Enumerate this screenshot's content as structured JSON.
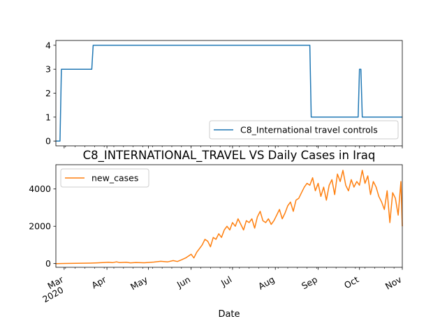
{
  "chart_data": [
    {
      "type": "line",
      "title": "",
      "xlabel": "",
      "ylabel": "",
      "ylim": [
        -0.2,
        4.2
      ],
      "yticks": [
        0,
        1,
        2,
        3,
        4
      ],
      "x_range": [
        "2020-02-24",
        "2020-11-01"
      ],
      "legend": "lower-right",
      "grid": false,
      "series": [
        {
          "name": "C8_International travel controls",
          "color": "#1f77b4",
          "points": [
            [
              "2020-02-24",
              0
            ],
            [
              "2020-02-27",
              0
            ],
            [
              "2020-02-28",
              3
            ],
            [
              "2020-03-21",
              3
            ],
            [
              "2020-03-22",
              4
            ],
            [
              "2020-08-26",
              4
            ],
            [
              "2020-08-27",
              1
            ],
            [
              "2020-09-30",
              1
            ],
            [
              "2020-10-01",
              3
            ],
            [
              "2020-10-02",
              3
            ],
            [
              "2020-10-03",
              1
            ],
            [
              "2020-11-01",
              1
            ]
          ]
        }
      ]
    },
    {
      "type": "line",
      "title": "C8_INTERNATIONAL_TRAVEL VS Daily Cases in Iraq",
      "xlabel": "Date",
      "ylabel": "",
      "ylim": [
        -200,
        5300
      ],
      "yticks": [
        0,
        2000,
        4000
      ],
      "x_range": [
        "2020-02-24",
        "2020-11-01"
      ],
      "xtick_labels": [
        {
          "date": "2020-03-01",
          "label": "Mar",
          "sub": "2020"
        },
        {
          "date": "2020-04-01",
          "label": "Apr",
          "sub": ""
        },
        {
          "date": "2020-05-01",
          "label": "May",
          "sub": ""
        },
        {
          "date": "2020-06-01",
          "label": "Jun",
          "sub": ""
        },
        {
          "date": "2020-07-01",
          "label": "Jul",
          "sub": ""
        },
        {
          "date": "2020-08-01",
          "label": "Aug",
          "sub": ""
        },
        {
          "date": "2020-09-01",
          "label": "Sep",
          "sub": ""
        },
        {
          "date": "2020-10-01",
          "label": "Oct",
          "sub": ""
        },
        {
          "date": "2020-11-01",
          "label": "Nov",
          "sub": ""
        }
      ],
      "legend": "upper-left",
      "grid": false,
      "series": [
        {
          "name": "new_cases",
          "color": "#ff7f0e",
          "points": [
            [
              "2020-02-24",
              0
            ],
            [
              "2020-03-01",
              5
            ],
            [
              "2020-03-10",
              12
            ],
            [
              "2020-03-20",
              25
            ],
            [
              "2020-03-25",
              40
            ],
            [
              "2020-03-30",
              60
            ],
            [
              "2020-04-02",
              70
            ],
            [
              "2020-04-05",
              50
            ],
            [
              "2020-04-08",
              90
            ],
            [
              "2020-04-10",
              55
            ],
            [
              "2020-04-15",
              70
            ],
            [
              "2020-04-18",
              40
            ],
            [
              "2020-04-22",
              60
            ],
            [
              "2020-04-28",
              45
            ],
            [
              "2020-05-05",
              80
            ],
            [
              "2020-05-10",
              120
            ],
            [
              "2020-05-15",
              90
            ],
            [
              "2020-05-19",
              160
            ],
            [
              "2020-05-22",
              110
            ],
            [
              "2020-05-25",
              200
            ],
            [
              "2020-05-28",
              300
            ],
            [
              "2020-05-30",
              400
            ],
            [
              "2020-06-01",
              500
            ],
            [
              "2020-06-03",
              300
            ],
            [
              "2020-06-05",
              600
            ],
            [
              "2020-06-07",
              800
            ],
            [
              "2020-06-09",
              1000
            ],
            [
              "2020-06-11",
              1300
            ],
            [
              "2020-06-13",
              1200
            ],
            [
              "2020-06-15",
              900
            ],
            [
              "2020-06-17",
              1400
            ],
            [
              "2020-06-19",
              1300
            ],
            [
              "2020-06-21",
              1600
            ],
            [
              "2020-06-23",
              1400
            ],
            [
              "2020-06-25",
              1800
            ],
            [
              "2020-06-27",
              2000
            ],
            [
              "2020-06-29",
              1800
            ],
            [
              "2020-07-01",
              2200
            ],
            [
              "2020-07-03",
              2000
            ],
            [
              "2020-07-05",
              2400
            ],
            [
              "2020-07-07",
              2100
            ],
            [
              "2020-07-09",
              1800
            ],
            [
              "2020-07-11",
              2300
            ],
            [
              "2020-07-13",
              2200
            ],
            [
              "2020-07-15",
              2400
            ],
            [
              "2020-07-17",
              1900
            ],
            [
              "2020-07-19",
              2500
            ],
            [
              "2020-07-21",
              2800
            ],
            [
              "2020-07-23",
              2300
            ],
            [
              "2020-07-25",
              2200
            ],
            [
              "2020-07-27",
              2400
            ],
            [
              "2020-07-29",
              2100
            ],
            [
              "2020-07-31",
              2300
            ],
            [
              "2020-08-02",
              2600
            ],
            [
              "2020-08-04",
              2900
            ],
            [
              "2020-08-06",
              2400
            ],
            [
              "2020-08-08",
              2700
            ],
            [
              "2020-08-10",
              3100
            ],
            [
              "2020-08-12",
              3300
            ],
            [
              "2020-08-14",
              2800
            ],
            [
              "2020-08-16",
              3400
            ],
            [
              "2020-08-18",
              3500
            ],
            [
              "2020-08-20",
              3800
            ],
            [
              "2020-08-22",
              4100
            ],
            [
              "2020-08-24",
              4300
            ],
            [
              "2020-08-26",
              4200
            ],
            [
              "2020-08-28",
              4600
            ],
            [
              "2020-08-30",
              3900
            ],
            [
              "2020-09-01",
              4300
            ],
            [
              "2020-09-03",
              3600
            ],
            [
              "2020-09-05",
              4100
            ],
            [
              "2020-09-07",
              3400
            ],
            [
              "2020-09-09",
              4200
            ],
            [
              "2020-09-11",
              4500
            ],
            [
              "2020-09-13",
              3700
            ],
            [
              "2020-09-15",
              4800
            ],
            [
              "2020-09-17",
              4400
            ],
            [
              "2020-09-19",
              5000
            ],
            [
              "2020-09-21",
              4200
            ],
            [
              "2020-09-23",
              3900
            ],
            [
              "2020-09-25",
              4500
            ],
            [
              "2020-09-27",
              4100
            ],
            [
              "2020-09-29",
              4400
            ],
            [
              "2020-10-01",
              4200
            ],
            [
              "2020-10-03",
              5000
            ],
            [
              "2020-10-05",
              4300
            ],
            [
              "2020-10-07",
              4700
            ],
            [
              "2020-10-09",
              3700
            ],
            [
              "2020-10-11",
              4400
            ],
            [
              "2020-10-13",
              4100
            ],
            [
              "2020-10-15",
              3600
            ],
            [
              "2020-10-17",
              3300
            ],
            [
              "2020-10-19",
              2900
            ],
            [
              "2020-10-21",
              3900
            ],
            [
              "2020-10-23",
              2200
            ],
            [
              "2020-10-25",
              3800
            ],
            [
              "2020-10-27",
              3500
            ],
            [
              "2020-10-29",
              2600
            ],
            [
              "2020-10-31",
              4400
            ],
            [
              "2020-11-01",
              2000
            ]
          ]
        }
      ]
    }
  ]
}
